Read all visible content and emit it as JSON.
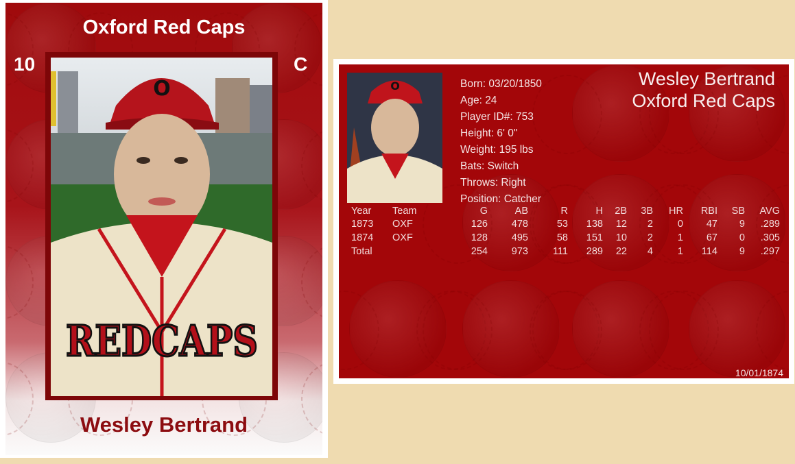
{
  "front_card": {
    "team": "Oxford Red Caps",
    "number": "10",
    "position": "C",
    "player_name": "Wesley Bertrand",
    "jersey_text": "REDCAPS",
    "cap_letter": "O"
  },
  "back_card": {
    "name": "Wesley Bertrand",
    "team": "Oxford Red Caps",
    "bio": [
      "Born: 03/20/1850",
      "Age: 24",
      "Player ID#: 753",
      "Height: 6' 0\"",
      "Weight: 195 lbs",
      "Bats: Switch",
      "Throws: Right",
      "Position: Catcher"
    ],
    "stats": {
      "headers": [
        "Year",
        "Team",
        "G",
        "AB",
        "R",
        "H",
        "2B",
        "3B",
        "HR",
        "RBI",
        "SB",
        "AVG"
      ],
      "rows": [
        [
          "1873",
          "OXF",
          "126",
          "478",
          "53",
          "138",
          "12",
          "2",
          "0",
          "47",
          "9",
          ".289"
        ],
        [
          "1874",
          "OXF",
          "128",
          "495",
          "58",
          "151",
          "10",
          "2",
          "1",
          "67",
          "0",
          ".305"
        ],
        [
          "Total",
          "",
          "254",
          "973",
          "111",
          "289",
          "22",
          "4",
          "1",
          "114",
          "9",
          ".297"
        ]
      ]
    },
    "date": "10/01/1874"
  },
  "colors": {
    "background": "#efdbb0",
    "card_red": "#a30609",
    "name_red": "#8c0c10",
    "frame": "#7d0608"
  }
}
